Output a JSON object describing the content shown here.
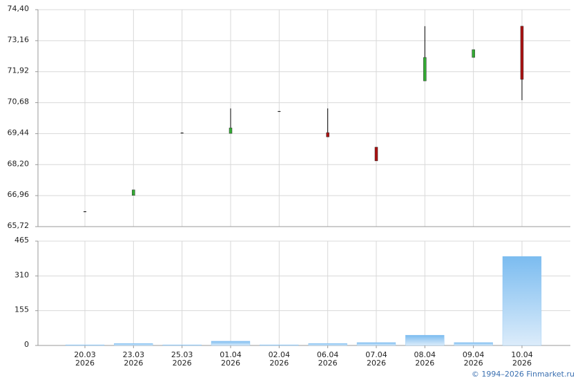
{
  "chart_data": [
    {
      "type": "candlestick",
      "open": [
        66.33,
        66.97,
        69.48,
        69.45,
        70.34,
        69.48,
        68.9,
        71.55,
        72.49,
        73.74
      ],
      "high": [
        66.33,
        67.19,
        69.48,
        70.45,
        70.34,
        70.45,
        68.9,
        73.74,
        72.8,
        73.74
      ],
      "low": [
        66.33,
        66.97,
        69.48,
        69.45,
        70.34,
        69.31,
        68.35,
        71.55,
        72.49,
        70.78
      ],
      "close": [
        66.33,
        67.19,
        69.48,
        69.67,
        70.34,
        69.31,
        68.35,
        72.49,
        72.8,
        71.61
      ],
      "color_up": "#33aa33",
      "color_down": "#aa1111",
      "ylim": [
        65.72,
        74.4
      ],
      "yticks": [
        {
          "value": 65.72,
          "label": "65,72"
        },
        {
          "value": 66.96,
          "label": "66,96"
        },
        {
          "value": 68.2,
          "label": "68,20"
        },
        {
          "value": 69.44,
          "label": "69,44"
        },
        {
          "value": 70.68,
          "label": "70,68"
        },
        {
          "value": 71.92,
          "label": "71,92"
        },
        {
          "value": 73.16,
          "label": "73,16"
        },
        {
          "value": 74.4,
          "label": "74,40"
        }
      ],
      "grid": true
    },
    {
      "type": "bar",
      "categories": [
        "20.03\n2026",
        "23.03\n2026",
        "25.03\n2026",
        "01.04\n2026",
        "02.04\n2026",
        "06.04\n2026",
        "07.04\n2026",
        "08.04\n2026",
        "09.04\n2026",
        "10.04\n2026"
      ],
      "values": [
        3,
        9,
        3,
        19,
        3,
        9,
        13,
        46,
        13,
        397
      ],
      "color": "#7bbcf0",
      "ylim": [
        0,
        465
      ],
      "yticks": [
        0,
        155,
        310,
        465
      ],
      "grid": true
    }
  ],
  "footer": "© 1994–2026 Finmarket.ru"
}
